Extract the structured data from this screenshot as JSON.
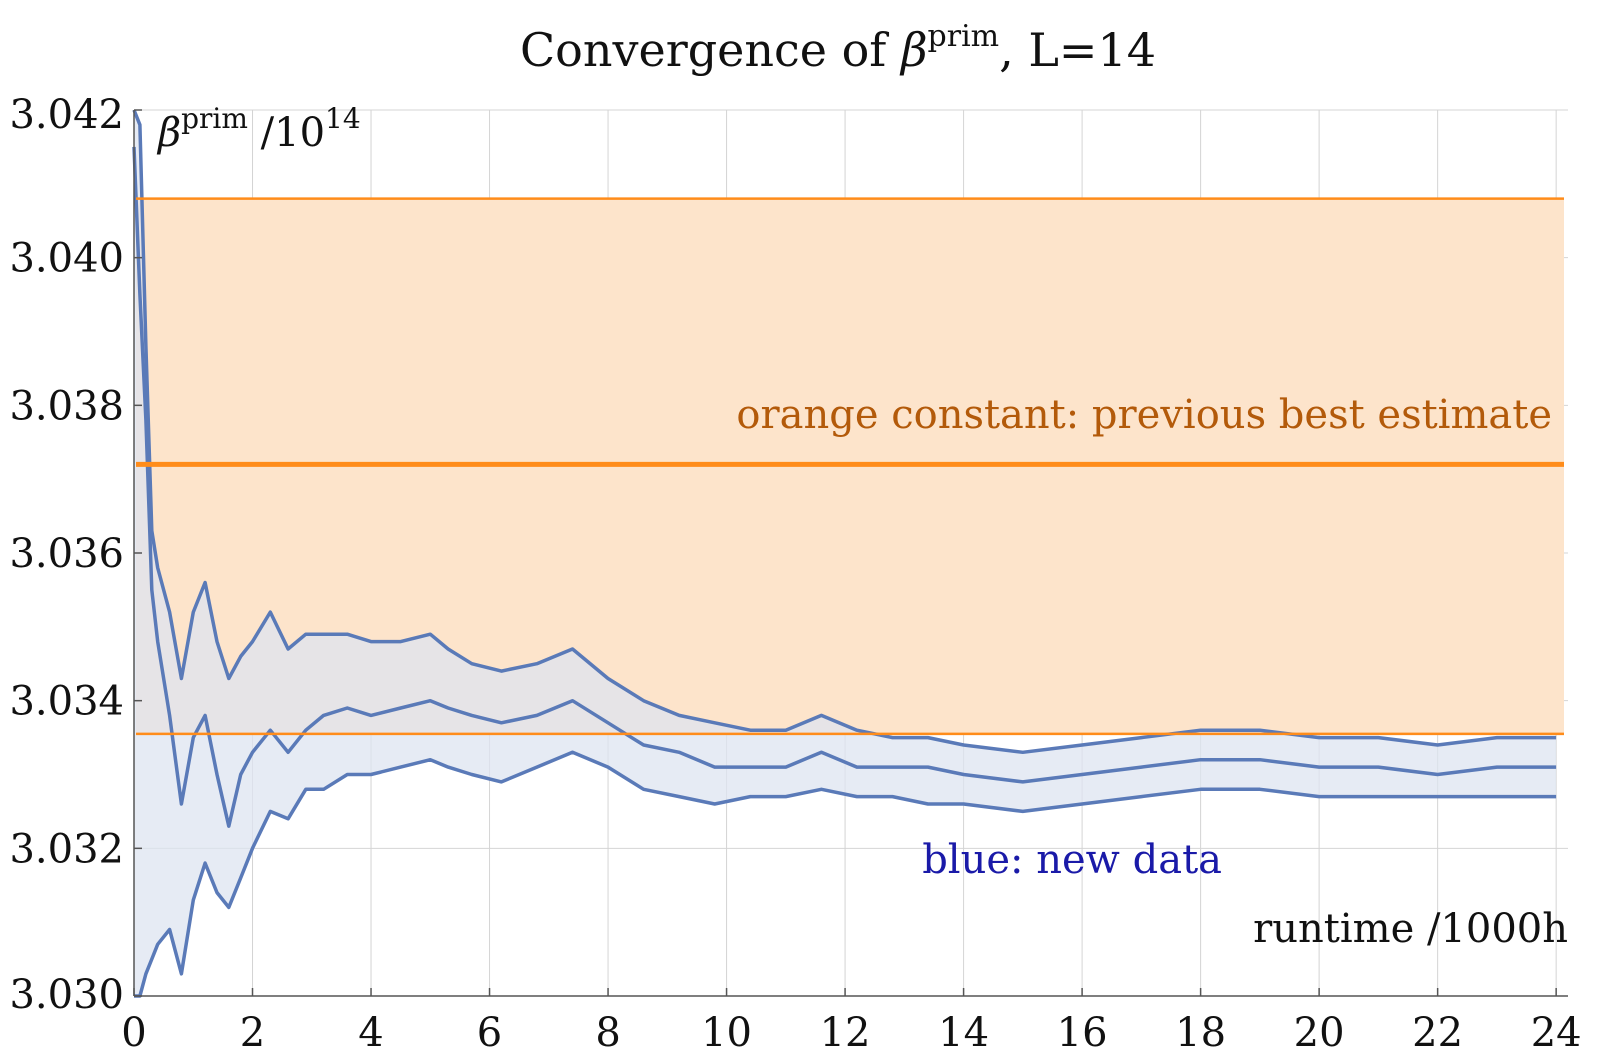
{
  "chart_data": {
    "type": "line",
    "title": {
      "prefix": "Convergence of ",
      "symbol": "β",
      "superscript": "prim",
      "suffix": ", L=14"
    },
    "ylabel": {
      "symbol": "β",
      "superscript": "prim",
      "divider": " /10",
      "exponent": "14"
    },
    "xlabel": "runtime /1000h",
    "xlim": [
      0,
      24.2
    ],
    "ylim": [
      3.03,
      3.042
    ],
    "x_ticks": [
      "0",
      "2",
      "4",
      "6",
      "8",
      "10",
      "12",
      "14",
      "16",
      "18",
      "20",
      "22",
      "24"
    ],
    "y_ticks": [
      "3.030",
      "3.032",
      "3.034",
      "3.036",
      "3.038",
      "3.040",
      "3.042"
    ],
    "grid": true,
    "annotations": {
      "orange": "orange constant: previous best estimate",
      "blue": "blue: new data"
    },
    "colors": {
      "orange": "#ff8c1a",
      "orange_fill": "#fde4cb",
      "blue": "#5a7ab8",
      "blue_fill": "#dde4f0",
      "grid": "#d4d4d4"
    },
    "reference_band": {
      "name": "previous best estimate",
      "center": 3.0372,
      "upper": 3.0408,
      "lower": 3.03355
    },
    "series": [
      {
        "name": "new data",
        "x": [
          0,
          0.1,
          0.2,
          0.3,
          0.4,
          0.6,
          0.8,
          1.0,
          1.2,
          1.4,
          1.6,
          1.8,
          2.0,
          2.3,
          2.6,
          2.9,
          3.2,
          3.6,
          4.0,
          4.5,
          5.0,
          5.3,
          5.7,
          6.2,
          6.8,
          7.4,
          8.0,
          8.6,
          9.2,
          9.8,
          10.4,
          11.0,
          11.6,
          12.2,
          12.8,
          13.4,
          14.0,
          15.0,
          16.0,
          17.0,
          18.0,
          19.0,
          20.0,
          21.0,
          22.0,
          23.0,
          24.0
        ],
        "center": [
          3.0415,
          3.0395,
          3.0378,
          3.0355,
          3.0348,
          3.0338,
          3.0326,
          3.0335,
          3.0338,
          3.033,
          3.0323,
          3.033,
          3.0333,
          3.0336,
          3.0333,
          3.0336,
          3.0338,
          3.0339,
          3.0338,
          3.0339,
          3.034,
          3.0339,
          3.0338,
          3.0337,
          3.0338,
          3.034,
          3.0337,
          3.0334,
          3.0333,
          3.0331,
          3.0331,
          3.0331,
          3.0333,
          3.0331,
          3.0331,
          3.0331,
          3.033,
          3.0329,
          3.033,
          3.0331,
          3.0332,
          3.0332,
          3.0331,
          3.0331,
          3.033,
          3.0331,
          3.0331
        ],
        "upper": [
          3.042,
          3.0418,
          3.0388,
          3.0363,
          3.0358,
          3.0352,
          3.0343,
          3.0352,
          3.0356,
          3.0348,
          3.0343,
          3.0346,
          3.0348,
          3.0352,
          3.0347,
          3.0349,
          3.0349,
          3.0349,
          3.0348,
          3.0348,
          3.0349,
          3.0347,
          3.0345,
          3.0344,
          3.0345,
          3.0347,
          3.0343,
          3.034,
          3.0338,
          3.0337,
          3.0336,
          3.0336,
          3.0338,
          3.0336,
          3.0335,
          3.0335,
          3.0334,
          3.0333,
          3.0334,
          3.0335,
          3.0336,
          3.0336,
          3.0335,
          3.0335,
          3.0334,
          3.0335,
          3.0335
        ],
        "lower": [
          3.03,
          3.03,
          3.0303,
          3.0305,
          3.0307,
          3.0309,
          3.0303,
          3.0313,
          3.0318,
          3.0314,
          3.0312,
          3.0316,
          3.032,
          3.0325,
          3.0324,
          3.0328,
          3.0328,
          3.033,
          3.033,
          3.0331,
          3.0332,
          3.0331,
          3.033,
          3.0329,
          3.0331,
          3.0333,
          3.0331,
          3.0328,
          3.0327,
          3.0326,
          3.0327,
          3.0327,
          3.0328,
          3.0327,
          3.0327,
          3.0326,
          3.0326,
          3.0325,
          3.0326,
          3.0327,
          3.0328,
          3.0328,
          3.0327,
          3.0327,
          3.0327,
          3.0327,
          3.0327
        ]
      }
    ]
  }
}
